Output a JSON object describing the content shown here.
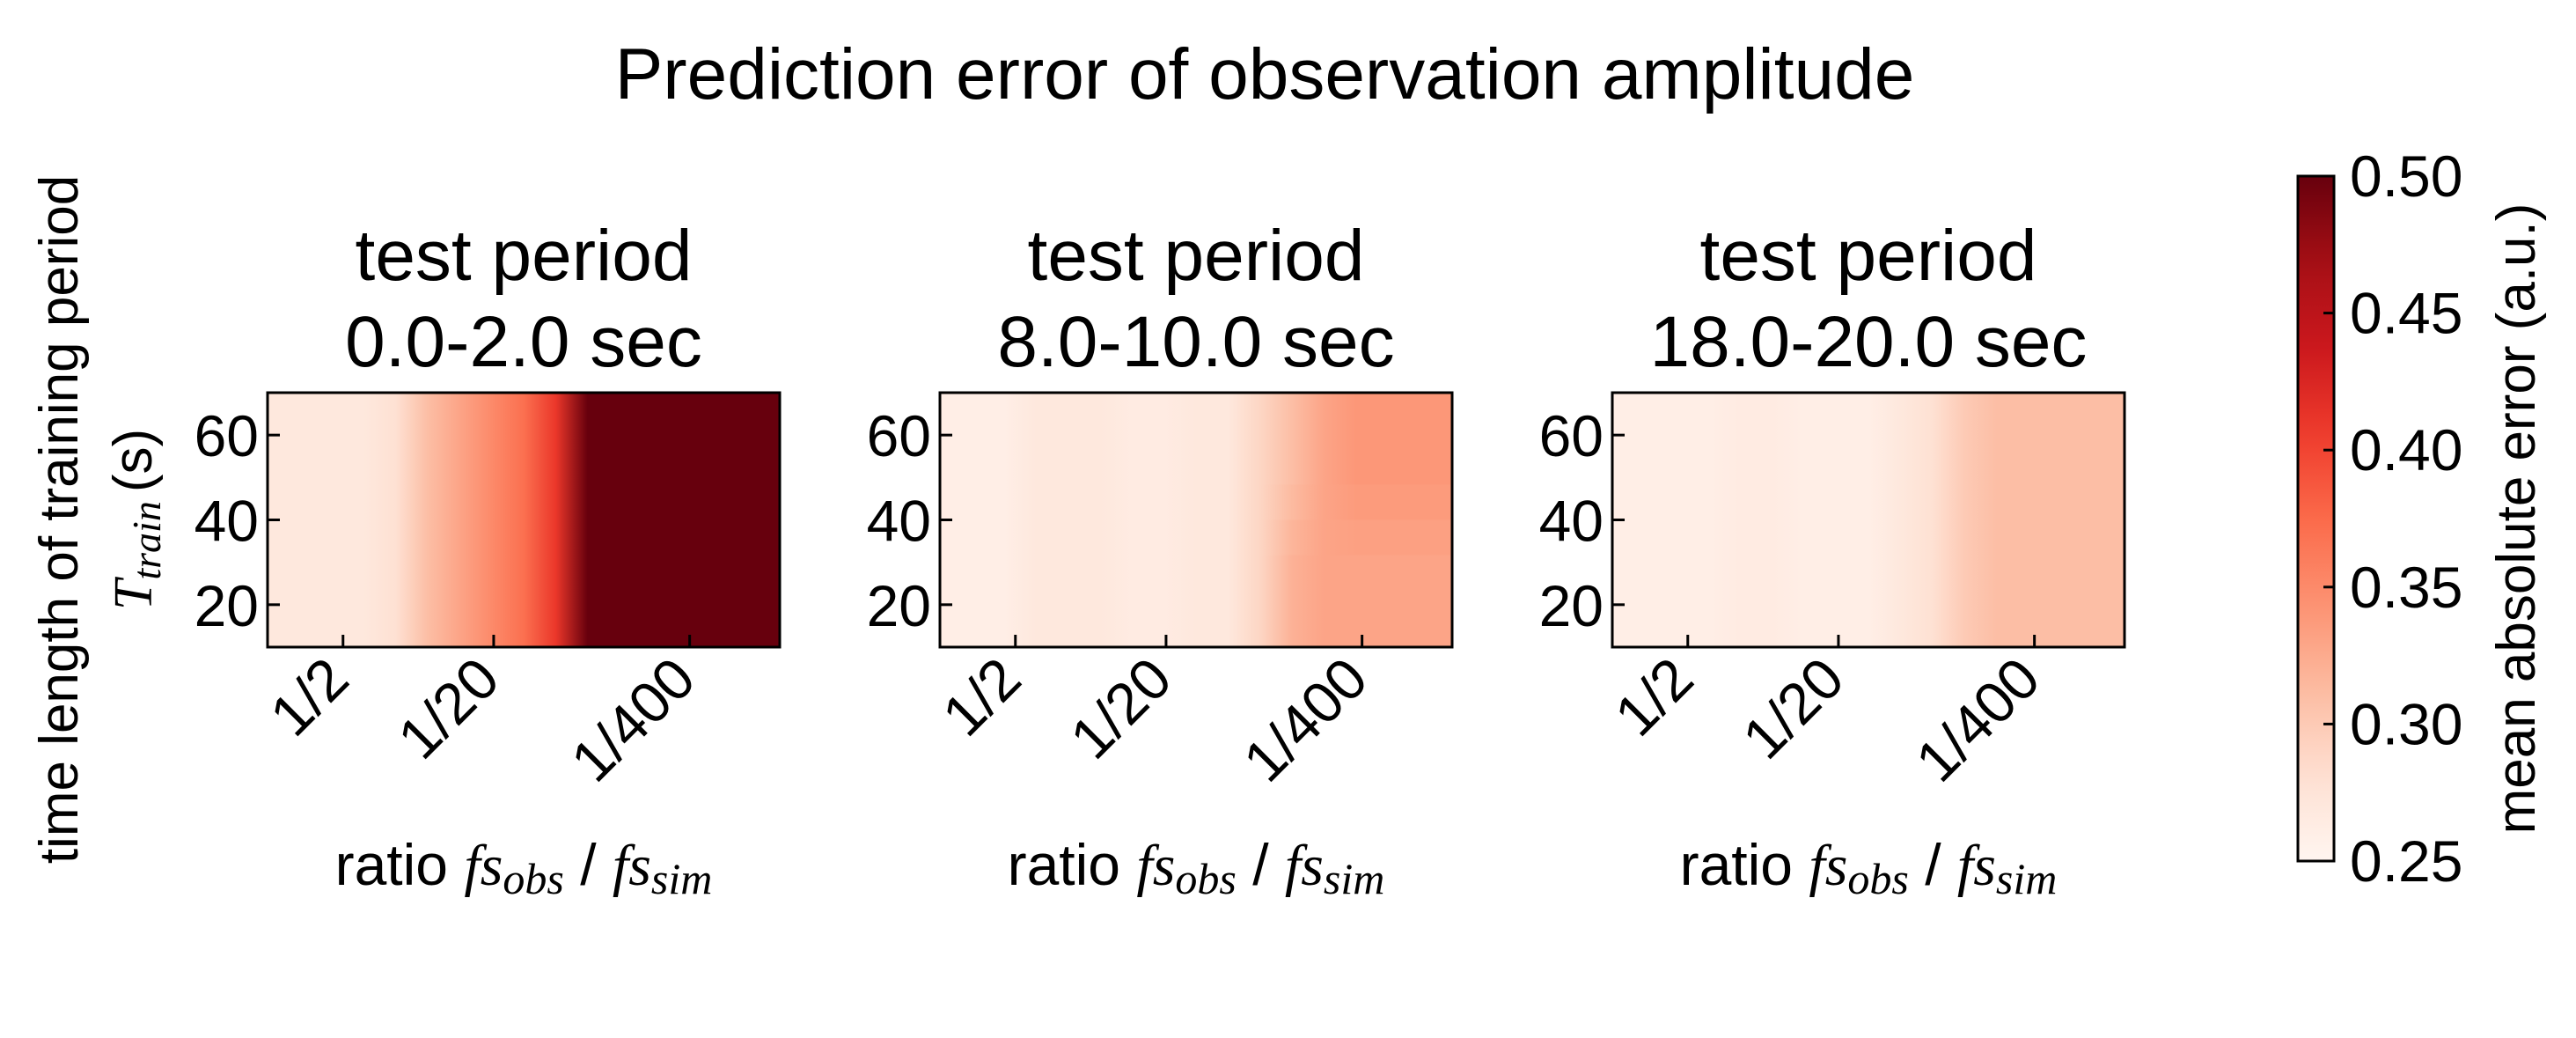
{
  "chart_data": {
    "type": "heatmap",
    "title": "Prediction error of observation amplitude",
    "ylabel": "time length of training period",
    "ylabel_symbol": "T",
    "ylabel_symbol_sub": "train",
    "ylabel_unit": "(s)",
    "xlabel_prefix": "ratio",
    "xlabel_num": "fs",
    "xlabel_num_sub": "obs",
    "xlabel_sep": "/",
    "xlabel_den": "fs",
    "xlabel_den_sub": "sim",
    "colormap": "Reds",
    "colorbar": {
      "label": "mean absolute error (a.u.)",
      "vmin": 0.25,
      "vmax": 0.5,
      "tick_labels": [
        "0.50",
        "0.45",
        "0.40",
        "0.35",
        "0.30",
        "0.25"
      ],
      "tick_values": [
        0.5,
        0.45,
        0.4,
        0.35,
        0.3,
        0.25
      ]
    },
    "x_ticks": [
      "1/2",
      "1/20",
      "1/400"
    ],
    "x_tick_log10": [
      -0.301,
      -1.301,
      -2.602
    ],
    "x_range_log10": [
      0.2,
      -3.2
    ],
    "y_ticks": [
      "60",
      "40",
      "20"
    ],
    "y_tick_values": [
      60,
      40,
      20
    ],
    "ylim": [
      10,
      70
    ],
    "panels": [
      {
        "title_line1": "test period",
        "title_line2": "0.0-2.0 sec",
        "profile_lower": [
          0.27,
          0.27,
          0.27,
          0.27,
          0.28,
          0.31,
          0.33,
          0.35,
          0.37,
          0.41,
          0.5,
          0.5,
          0.5,
          0.5,
          0.5,
          0.5,
          0.5
        ],
        "profile_upper": [
          0.27,
          0.27,
          0.27,
          0.27,
          0.28,
          0.31,
          0.33,
          0.35,
          0.37,
          0.41,
          0.5,
          0.5,
          0.5,
          0.5,
          0.5,
          0.5,
          0.5
        ]
      },
      {
        "title_line1": "test period",
        "title_line2": "8.0-10.0 sec",
        "profile_lower": [
          0.26,
          0.26,
          0.26,
          0.27,
          0.27,
          0.27,
          0.265,
          0.265,
          0.27,
          0.27,
          0.29,
          0.32,
          0.33,
          0.33,
          0.33,
          0.33,
          0.33
        ],
        "profile_upper": [
          0.26,
          0.26,
          0.26,
          0.27,
          0.27,
          0.27,
          0.265,
          0.265,
          0.27,
          0.27,
          0.29,
          0.31,
          0.33,
          0.34,
          0.34,
          0.34,
          0.34
        ]
      },
      {
        "title_line1": "test period",
        "title_line2": "18.0-20.0 sec",
        "profile_lower": [
          0.26,
          0.26,
          0.26,
          0.26,
          0.265,
          0.265,
          0.26,
          0.26,
          0.26,
          0.27,
          0.28,
          0.3,
          0.31,
          0.31,
          0.31,
          0.31,
          0.31
        ],
        "profile_upper": [
          0.26,
          0.26,
          0.26,
          0.26,
          0.265,
          0.265,
          0.26,
          0.26,
          0.26,
          0.27,
          0.28,
          0.3,
          0.31,
          0.31,
          0.31,
          0.31,
          0.31
        ]
      }
    ]
  }
}
